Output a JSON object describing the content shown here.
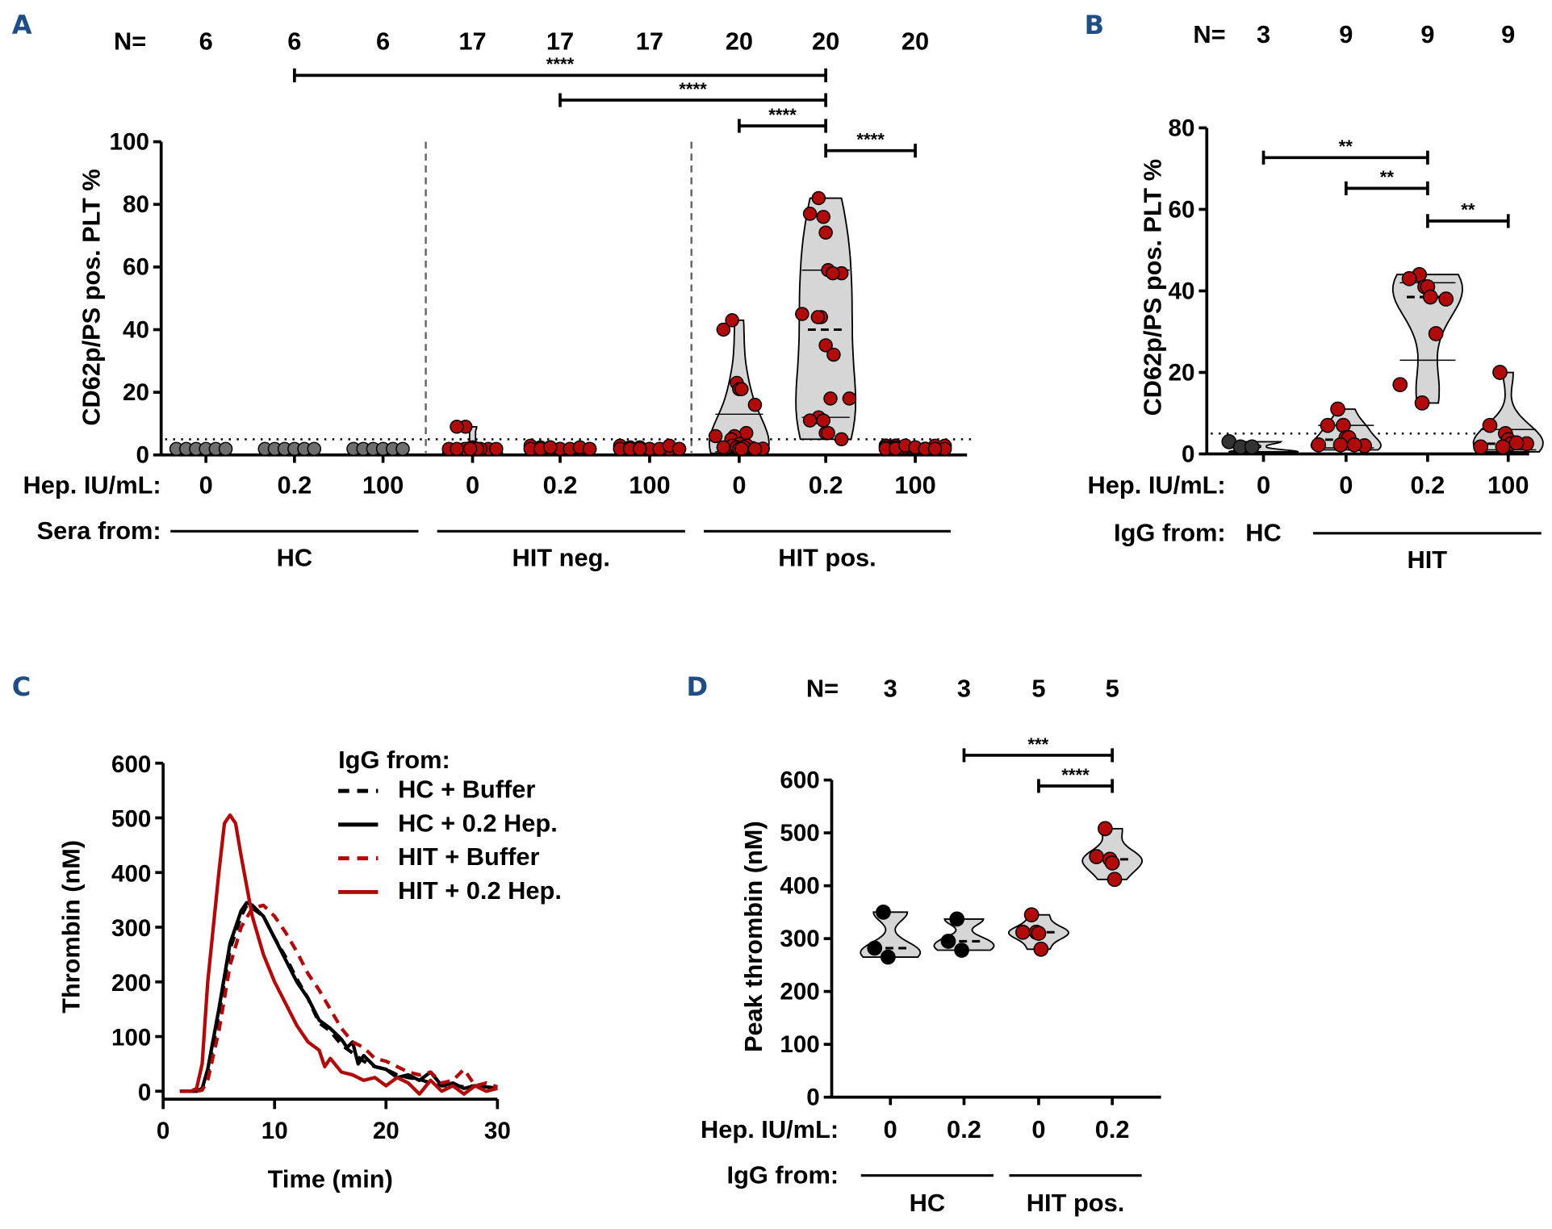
{
  "colors": {
    "hit_red": "#b10a0a",
    "hc_grey": "#6e6e6e",
    "hc_dark": "#333333",
    "violin_fill": "#d6d6d6",
    "panel_label": "#1f4e85",
    "hc_black": "#000000"
  },
  "chart_data": [
    {
      "panel": "A",
      "type": "scatter",
      "subtype": "violin",
      "ylabel": "CD62p/PS pos. PLT %",
      "ylim": [
        0,
        100
      ],
      "yticks": [
        0,
        20,
        40,
        60,
        80,
        100
      ],
      "threshold": 5,
      "n_label": "N=",
      "x_row_label": "Hep. IU/mL:",
      "group_row_label": "Sera from:",
      "categories": [
        "0",
        "0.2",
        "100",
        "0",
        "0.2",
        "100",
        "0",
        "0.2",
        "100"
      ],
      "n": [
        "6",
        "6",
        "6",
        "17",
        "17",
        "17",
        "20",
        "20",
        "20"
      ],
      "groups": [
        {
          "name": "HC",
          "span": [
            0,
            2
          ]
        },
        {
          "name": "HIT neg.",
          "span": [
            3,
            5
          ]
        },
        {
          "name": "HIT pos.",
          "span": [
            6,
            8
          ]
        }
      ],
      "series": [
        {
          "name": "HC 0",
          "color": "grey",
          "values": [
            0.5,
            0.5,
            0.5,
            0.5,
            0.5,
            0.5
          ]
        },
        {
          "name": "HC 0.2",
          "color": "grey",
          "values": [
            0.5,
            0.5,
            0.5,
            0.5,
            0.5,
            0.5
          ]
        },
        {
          "name": "HC 100",
          "color": "grey",
          "values": [
            0.5,
            0.5,
            0.5,
            0.5,
            0.5,
            0.5
          ]
        },
        {
          "name": "HIT neg. 0",
          "color": "red",
          "values": [
            9,
            9,
            2,
            1,
            0.5,
            0.5,
            0.5,
            0.5,
            0.5,
            0.5,
            0.5,
            0.5,
            0.5,
            0.5,
            0.5,
            0.5,
            0.5
          ]
        },
        {
          "name": "HIT neg. 0.2",
          "color": "red",
          "values": [
            1.5,
            1,
            1,
            0.5,
            0.5,
            0.5,
            0.5,
            0.5,
            0.5,
            0.5,
            0.5,
            0.5,
            1,
            0.5,
            0.5,
            0.5,
            1
          ]
        },
        {
          "name": "HIT neg. 100",
          "color": "red",
          "values": [
            1.5,
            1,
            1,
            0.5,
            0.5,
            0.5,
            0.5,
            0.5,
            0.5,
            0.5,
            0.5,
            0.5,
            1.5,
            0.5,
            0.5,
            0.5,
            0.5
          ]
        },
        {
          "name": "HIT pos. 0",
          "color": "red",
          "values": [
            43,
            40,
            23,
            21,
            21,
            16,
            7,
            6,
            6,
            5,
            3.5,
            3,
            2.5,
            2,
            1.5,
            1,
            1,
            0.5,
            0.5,
            0.5
          ],
          "median": 4,
          "quartiles": [
            1,
            13
          ]
        },
        {
          "name": "HIT pos. 0.2",
          "color": "red",
          "values": [
            82,
            77,
            76,
            71,
            59,
            58,
            58,
            45,
            44,
            44,
            35,
            32,
            18,
            18,
            12,
            11,
            11,
            7,
            7,
            5
          ],
          "median": 40,
          "quartiles": [
            12,
            59
          ]
        },
        {
          "name": "HIT pos. 100",
          "color": "red",
          "values": [
            3,
            3,
            2.5,
            2,
            2,
            1.5,
            1.5,
            1,
            1,
            1,
            1,
            0.5,
            0.5,
            0.5,
            0.5,
            2,
            3,
            1,
            0.5,
            0.5
          ]
        }
      ],
      "significance": [
        {
          "from": 1,
          "to": 7,
          "label": "****"
        },
        {
          "from": 4,
          "to": 7,
          "label": "****"
        },
        {
          "from": 6,
          "to": 7,
          "label": "****"
        },
        {
          "from": 7,
          "to": 8,
          "label": "****"
        }
      ]
    },
    {
      "panel": "B",
      "type": "scatter",
      "subtype": "violin",
      "ylabel": "CD62p/PS pos. PLT %",
      "ylim": [
        0,
        80
      ],
      "yticks": [
        0,
        20,
        40,
        60,
        80
      ],
      "threshold": 5,
      "n_label": "N=",
      "x_row_label": "Hep. IU/mL:",
      "group_row_label": "IgG from:",
      "categories": [
        "0",
        "0",
        "0.2",
        "100"
      ],
      "n": [
        "3",
        "9",
        "9",
        "9"
      ],
      "groups": [
        {
          "name": "HC",
          "span": [
            0,
            0
          ],
          "inline": true
        },
        {
          "name": "HIT",
          "span": [
            1,
            3
          ]
        }
      ],
      "series": [
        {
          "name": "HC 0",
          "color": "dark",
          "values": [
            3,
            0.5,
            0.5
          ]
        },
        {
          "name": "HIT 0",
          "color": "red",
          "values": [
            11,
            7,
            7,
            4,
            4,
            2,
            1,
            1,
            1
          ],
          "median": 3.5,
          "quartiles": [
            1.5,
            7
          ]
        },
        {
          "name": "HIT 0.2",
          "color": "red",
          "values": [
            44,
            43,
            41,
            41,
            38.5,
            38,
            29.5,
            17,
            12.5
          ],
          "median": 38.5,
          "quartiles": [
            23,
            42
          ]
        },
        {
          "name": "HIT 100",
          "color": "red",
          "values": [
            20,
            7,
            5,
            3.5,
            2.5,
            2.5,
            1.5,
            0.5,
            0.5
          ],
          "median": 2.5,
          "quartiles": [
            1,
            6
          ]
        }
      ],
      "significance": [
        {
          "from": 0,
          "to": 2,
          "label": "**"
        },
        {
          "from": 1,
          "to": 2,
          "label": "**"
        },
        {
          "from": 2,
          "to": 3,
          "label": "**"
        }
      ]
    },
    {
      "panel": "C",
      "type": "line",
      "xlabel": "Time (min)",
      "ylabel": "Thrombin (nM)",
      "xlim": [
        0,
        30
      ],
      "ylim": [
        0,
        600
      ],
      "xticks": [
        0,
        10,
        20,
        30
      ],
      "yticks": [
        0,
        100,
        200,
        300,
        400,
        500,
        600
      ],
      "legend_title": "IgG from:",
      "legend_position": "top-right",
      "series": [
        {
          "name": "HC + Buffer",
          "color": "black",
          "dash": true,
          "x": [
            1.5,
            3,
            3.5,
            4,
            5,
            6,
            7,
            7.5,
            8,
            9,
            10,
            11,
            12,
            13,
            14,
            15,
            16,
            17,
            18,
            19,
            20,
            21,
            22,
            23,
            24,
            25,
            26,
            27,
            28,
            29,
            30
          ],
          "y": [
            0,
            0,
            5,
            30,
            140,
            260,
            320,
            340,
            335,
            320,
            280,
            245,
            205,
            170,
            125,
            110,
            85,
            70,
            55,
            45,
            40,
            30,
            25,
            22,
            15,
            10,
            10,
            8,
            10,
            8,
            5
          ]
        },
        {
          "name": "HC + 0.2 Hep.",
          "color": "black",
          "dash": false,
          "x": [
            1.5,
            3,
            3.5,
            4,
            5,
            6,
            7,
            7.5,
            8,
            9,
            10,
            11,
            12,
            13,
            14,
            15,
            16,
            16.5,
            17,
            17.5,
            18,
            19,
            20,
            21,
            22,
            23,
            24,
            25,
            26,
            27,
            28,
            29,
            30
          ],
          "y": [
            0,
            0,
            5,
            40,
            150,
            270,
            330,
            345,
            340,
            320,
            280,
            240,
            200,
            170,
            130,
            115,
            95,
            80,
            90,
            50,
            65,
            45,
            40,
            25,
            30,
            20,
            35,
            10,
            15,
            5,
            10,
            8,
            5
          ]
        },
        {
          "name": "HIT + Buffer",
          "color": "red",
          "dash": true,
          "x": [
            1.5,
            3,
            3.5,
            4,
            5,
            6,
            7,
            8,
            9,
            10,
            11,
            12,
            13,
            14,
            15,
            16,
            17,
            18,
            19,
            20,
            21,
            22,
            23,
            24,
            25,
            26,
            27,
            28,
            29,
            30
          ],
          "y": [
            0,
            0,
            2,
            20,
            110,
            230,
            300,
            335,
            340,
            320,
            290,
            255,
            215,
            185,
            150,
            115,
            90,
            80,
            60,
            55,
            45,
            35,
            30,
            35,
            15,
            20,
            40,
            10,
            15,
            8
          ]
        },
        {
          "name": "HIT + 0.2 Hep.",
          "color": "red",
          "dash": false,
          "x": [
            1.5,
            2.5,
            3,
            3.5,
            4,
            5,
            5.5,
            6,
            6.5,
            7,
            8,
            9,
            10,
            11,
            12,
            13,
            14,
            14.5,
            15,
            16,
            17,
            18,
            19,
            20,
            21,
            22,
            23,
            24,
            25,
            26,
            27,
            28,
            29,
            30
          ],
          "y": [
            0,
            0,
            5,
            50,
            200,
            400,
            490,
            505,
            490,
            430,
            320,
            250,
            200,
            160,
            120,
            90,
            75,
            45,
            60,
            35,
            30,
            20,
            25,
            10,
            25,
            15,
            -5,
            20,
            0,
            10,
            -5,
            10,
            0,
            5
          ]
        }
      ]
    },
    {
      "panel": "D",
      "type": "scatter",
      "subtype": "violin",
      "ylabel": "Peak thrombin (nM)",
      "ylim": [
        0,
        600
      ],
      "yticks": [
        0,
        100,
        200,
        300,
        400,
        500,
        600
      ],
      "n_label": "N=",
      "x_row_label": "Hep. IU/mL:",
      "group_row_label": "IgG from:",
      "categories": [
        "0",
        "0.2",
        "0",
        "0.2"
      ],
      "n": [
        "3",
        "3",
        "5",
        "5"
      ],
      "groups": [
        {
          "name": "HC",
          "span": [
            0,
            1
          ]
        },
        {
          "name": "HIT pos.",
          "span": [
            2,
            3
          ]
        }
      ],
      "series": [
        {
          "name": "HC 0",
          "color": "black",
          "values": [
            350,
            282,
            265
          ],
          "median": 282
        },
        {
          "name": "HC 0.2",
          "color": "black",
          "values": [
            337,
            295,
            278
          ],
          "median": 295
        },
        {
          "name": "HIT pos. 0",
          "color": "red",
          "values": [
            345,
            312,
            312,
            310,
            280
          ],
          "median": 312
        },
        {
          "name": "HIT pos. 0.2",
          "color": "red",
          "values": [
            508,
            455,
            450,
            443,
            412
          ],
          "median": 450
        }
      ],
      "significance": [
        {
          "from": 1,
          "to": 3,
          "label": "***"
        },
        {
          "from": 2,
          "to": 3,
          "label": "****"
        }
      ]
    }
  ]
}
